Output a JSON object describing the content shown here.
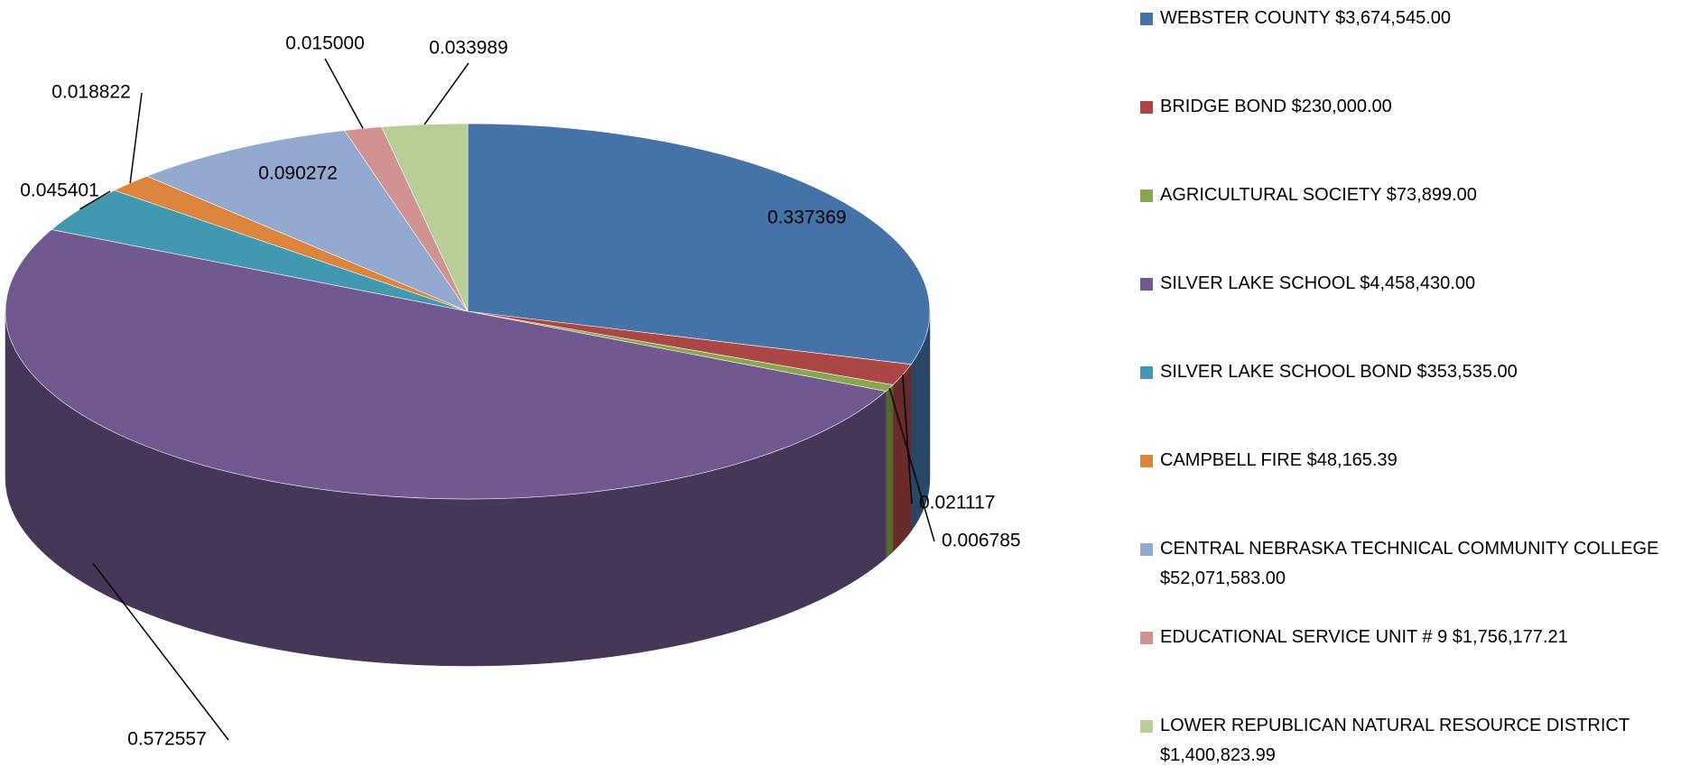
{
  "chart_data": {
    "type": "pie",
    "categories": [
      "WEBSTER COUNTY $3,674,545.00",
      "BRIDGE BOND $230,000.00",
      "AGRICULTURAL SOCIETY $73,899.00",
      "SILVER LAKE SCHOOL $4,458,430.00",
      "SILVER LAKE SCHOOL BOND $353,535.00",
      "CAMPBELL FIRE $48,165.39",
      "CENTRAL NEBRASKA TECHNICAL COMMUNITY COLLEGE $52,071,583.00",
      "EDUCATIONAL SERVICE UNIT # 9 $1,756,177.21",
      "LOWER REPUBLICAN NATURAL RESOURCE DISTRICT $1,400,823.99"
    ],
    "values": [
      0.337369,
      0.021117,
      0.006785,
      0.572557,
      0.045401,
      0.018822,
      0.090272,
      0.015,
      0.033989
    ],
    "value_labels": [
      "0.337369",
      "0.021117",
      "0.006785",
      "0.572557",
      "0.045401",
      "0.018822",
      "0.090272",
      "0.015000",
      "0.033989"
    ],
    "colors": [
      "#4572a7",
      "#aa4643",
      "#89a54e",
      "#71588f",
      "#4198af",
      "#db843d",
      "#93a9cf",
      "#d19392",
      "#b9cd96"
    ]
  }
}
